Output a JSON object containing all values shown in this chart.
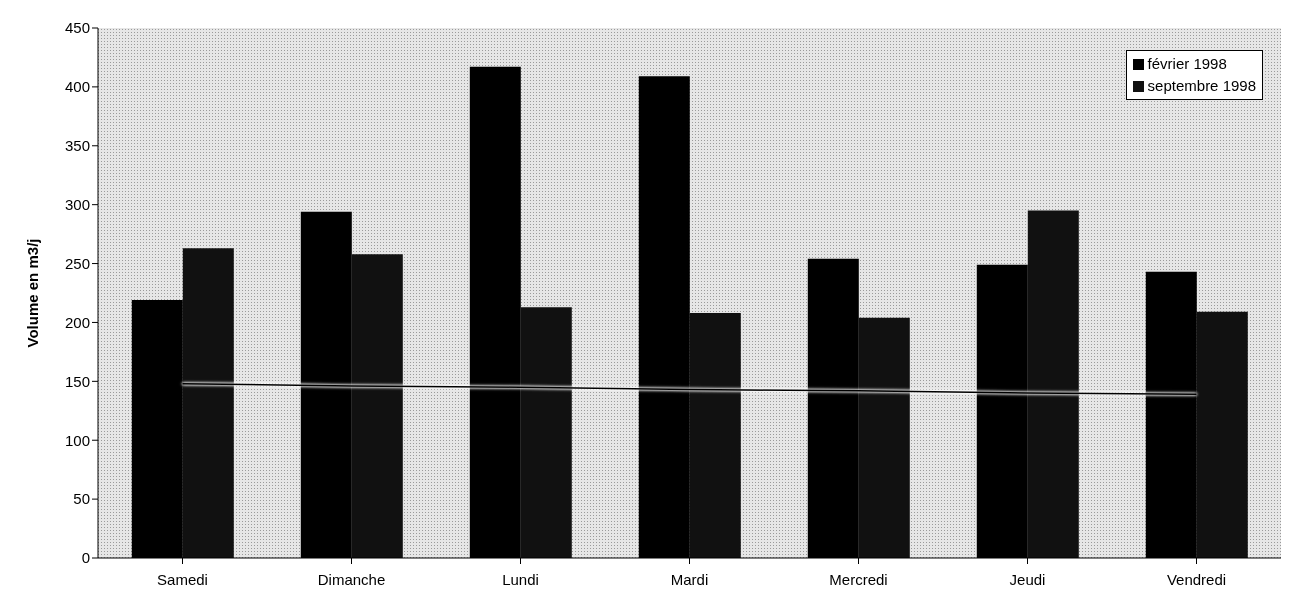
{
  "chart_data": {
    "type": "bar",
    "ylabel": "Volume en m3/j",
    "categories": [
      "Samedi",
      "Dimanche",
      "Lundi",
      "Mardi",
      "Mercredi",
      "Jeudi",
      "Vendredi"
    ],
    "series": [
      {
        "type": "line",
        "color": "#000000",
        "values": [
          148,
          146,
          145,
          143,
          142,
          140,
          139
        ]
      },
      {
        "name": "février 1998",
        "color": "#000000",
        "values": [
          219,
          294,
          417,
          409,
          254,
          249,
          243
        ]
      },
      {
        "name": "septembre 1998",
        "color": "#111111",
        "values": [
          263,
          258,
          213,
          208,
          204,
          295,
          209
        ]
      }
    ],
    "ylim": [
      0,
      450
    ],
    "yticks": [
      0,
      50,
      100,
      150,
      200,
      250,
      300,
      350,
      400,
      450
    ],
    "legend": "top right",
    "grid": false,
    "marker": "none"
  }
}
